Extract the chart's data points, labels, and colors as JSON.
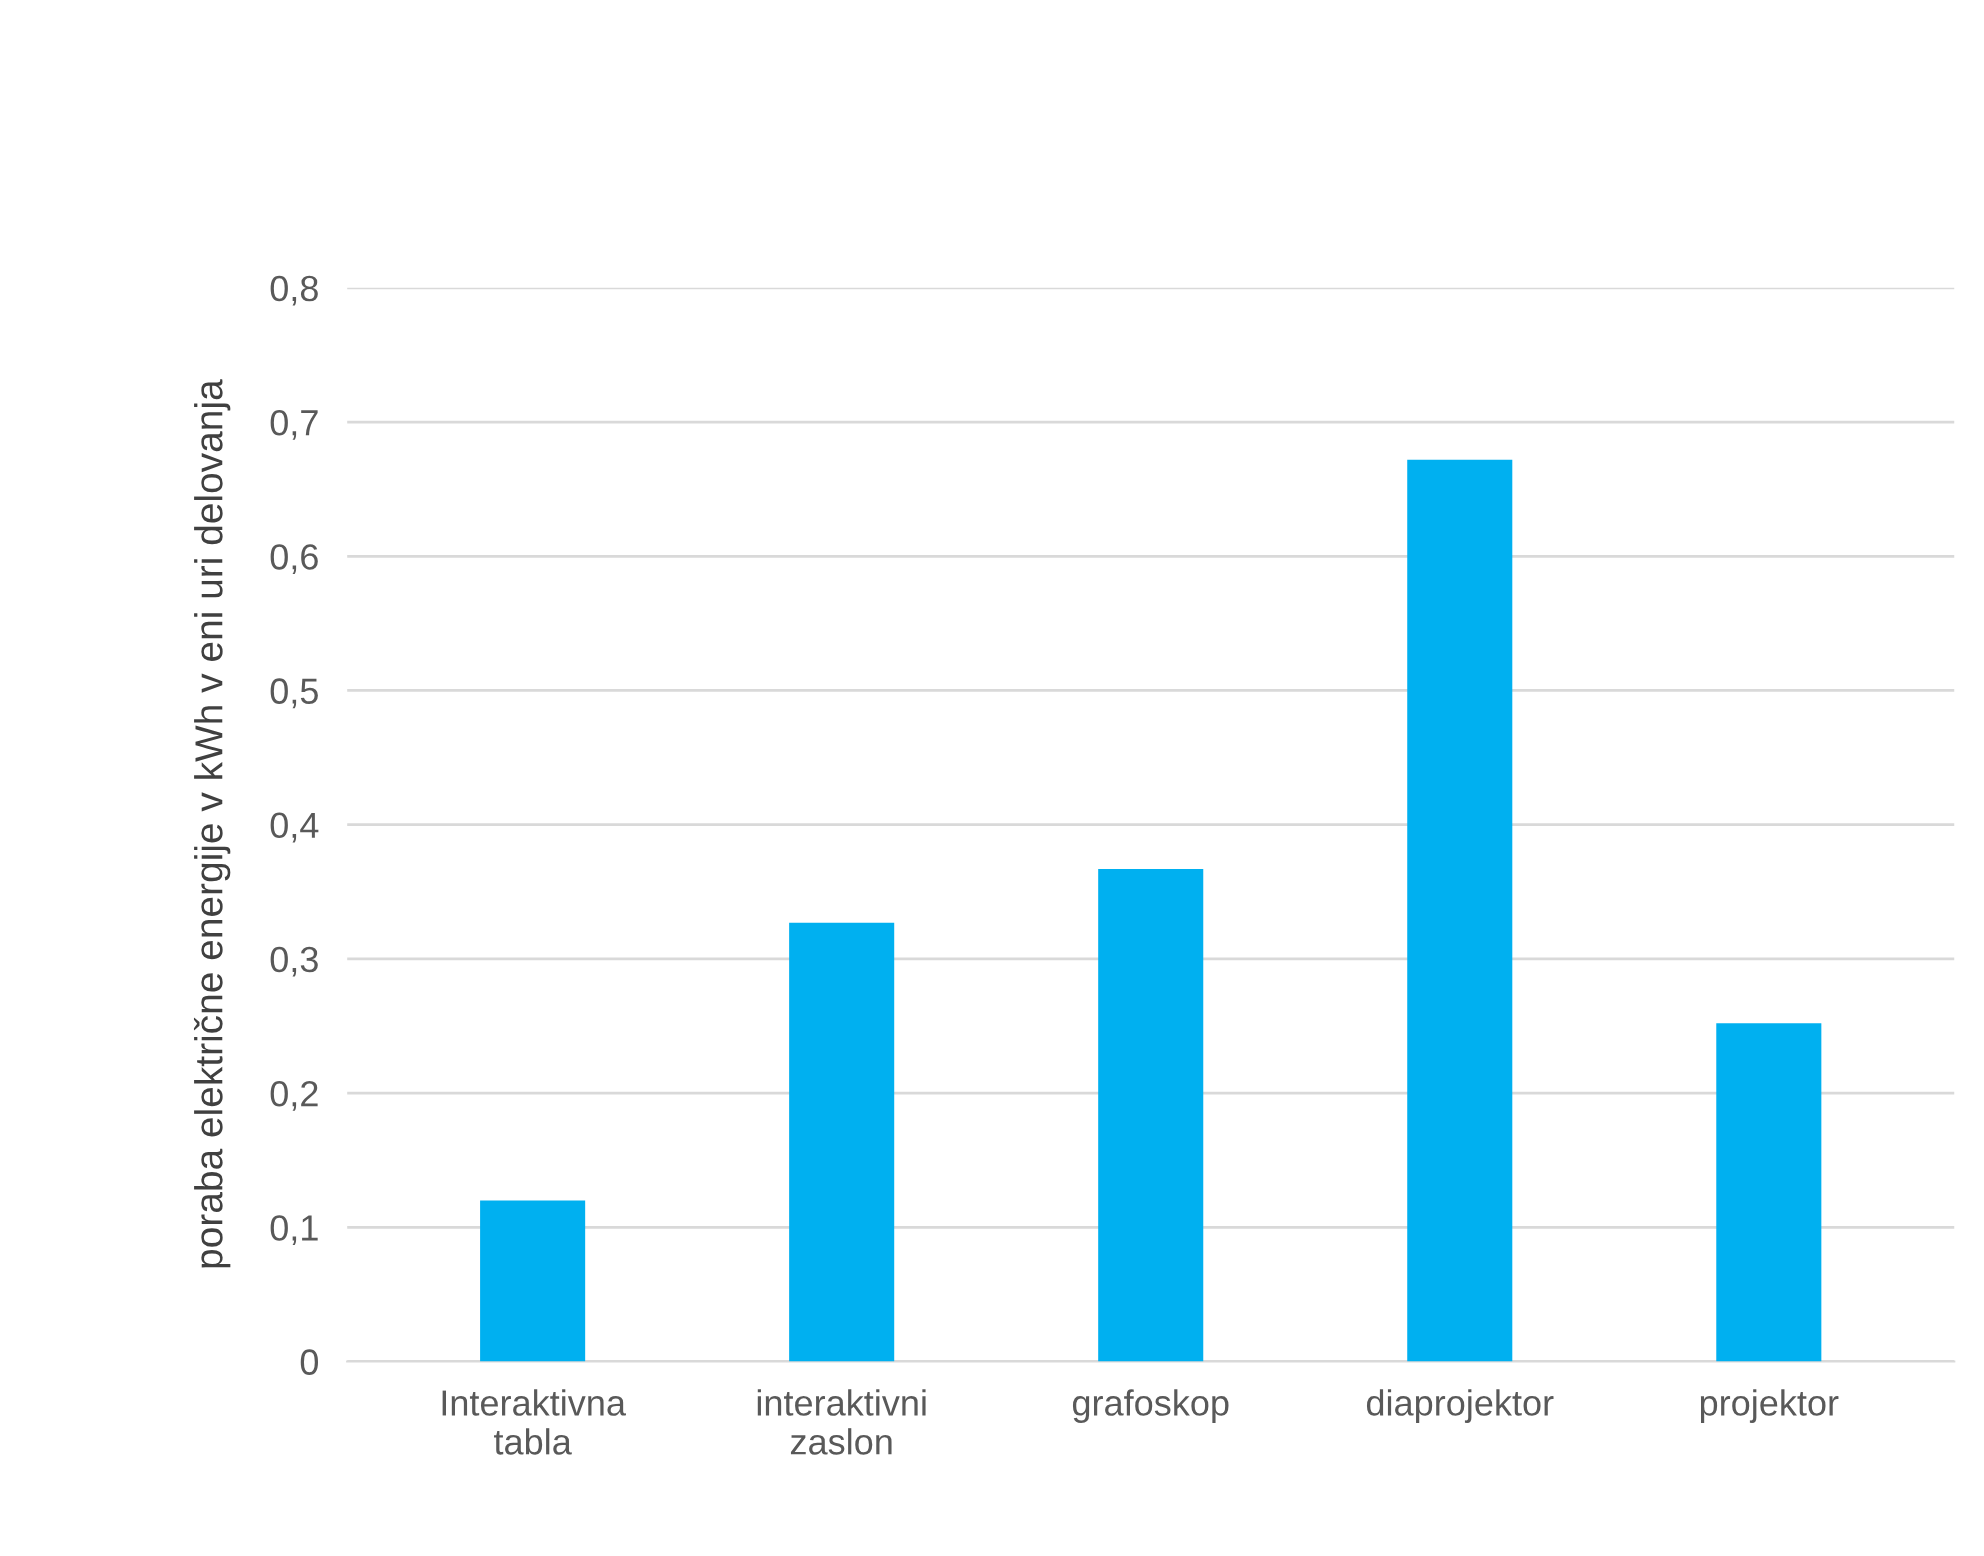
{
  "chart_data": {
    "type": "bar",
    "ylabel": "poraba električne energije v kWh v eni uri delovanja",
    "categories": [
      "Interaktivna\ntabla",
      "interaktivni\nzaslon",
      "grafoskop",
      "diaprojektor",
      "projektor"
    ],
    "values": [
      0.12,
      0.327,
      0.367,
      0.672,
      0.252
    ],
    "color": "#00b0f0",
    "ylim": [
      0,
      0.8
    ],
    "yticks": [
      {
        "value": 0,
        "label": "0"
      },
      {
        "value": 0.1,
        "label": "0,1"
      },
      {
        "value": 0.2,
        "label": "0,2"
      },
      {
        "value": 0.3,
        "label": "0,3"
      },
      {
        "value": 0.4,
        "label": "0,4"
      },
      {
        "value": 0.5,
        "label": "0,5"
      },
      {
        "value": 0.6,
        "label": "0,6"
      },
      {
        "value": 0.7,
        "label": "0,7"
      },
      {
        "value": 0.8,
        "label": "0,8"
      }
    ],
    "grid": "y"
  }
}
